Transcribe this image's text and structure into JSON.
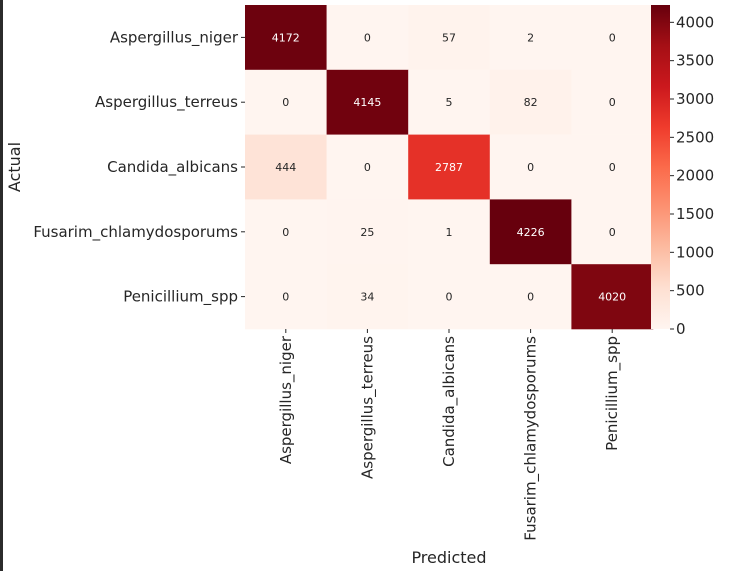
{
  "chart_data": {
    "type": "heatmap",
    "title": "",
    "xlabel": "Predicted",
    "ylabel": "Actual",
    "x_categories": [
      "Aspergillus_niger",
      "Aspergillus_terreus",
      "Candida_albicans",
      "Fusarim_chlamydosporums",
      "Penicillium_spp"
    ],
    "y_categories": [
      "Aspergillus_niger",
      "Aspergillus_terreus",
      "Candida_albicans",
      "Fusarim_chlamydosporums",
      "Penicillium_spp"
    ],
    "values": [
      [
        4172,
        0,
        57,
        2,
        0
      ],
      [
        0,
        4145,
        5,
        82,
        0
      ],
      [
        444,
        0,
        2787,
        0,
        0
      ],
      [
        0,
        25,
        1,
        4226,
        0
      ],
      [
        0,
        34,
        0,
        0,
        4020
      ]
    ],
    "colorscale": "Reds",
    "color_range": [
      0,
      4226
    ],
    "colorbar_ticks": [
      0,
      500,
      1000,
      1500,
      2000,
      2500,
      3000,
      3500,
      4000
    ],
    "colors": {
      "low": "#fff5f0",
      "high": "#67000d"
    }
  }
}
